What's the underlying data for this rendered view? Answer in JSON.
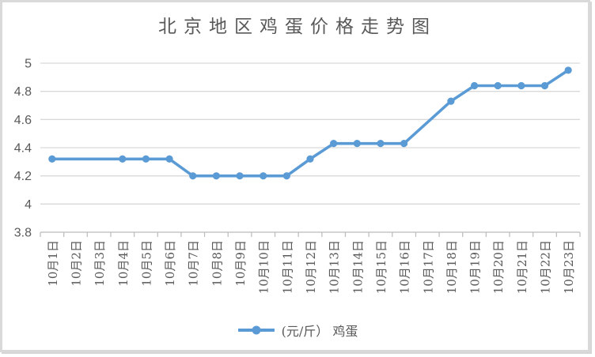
{
  "chart": {
    "colors": {
      "series": "#5B9BD5",
      "grid": "#D9D9D9",
      "axis": "#BFBFBF",
      "text": "#595959",
      "border": "#D9D9D9"
    }
  },
  "chart_data": {
    "type": "line",
    "title": "北京地区鸡蛋价格走势图",
    "categories": [
      "10月1日",
      "10月2日",
      "10月3日",
      "10月4日",
      "10月5日",
      "10月6日",
      "10月7日",
      "10月8日",
      "10月9日",
      "10月10日",
      "10月11日",
      "10月12日",
      "10月13日",
      "10月14日",
      "10月15日",
      "10月16日",
      "10月17日",
      "10月18日",
      "10月19日",
      "10月20日",
      "10月21日",
      "10月22日",
      "10月23日"
    ],
    "series": [
      {
        "name": "(元/斤） 鸡蛋",
        "values": [
          4.32,
          null,
          null,
          4.32,
          4.32,
          4.32,
          4.2,
          4.2,
          4.2,
          4.2,
          4.2,
          4.32,
          4.43,
          4.43,
          4.43,
          4.43,
          null,
          4.73,
          4.84,
          4.84,
          4.84,
          4.84,
          4.95
        ]
      }
    ],
    "ylim": [
      3.8,
      5
    ],
    "yticks": [
      5,
      4.8,
      4.6,
      4.4,
      4.2,
      4,
      3.8
    ],
    "ytick_labels": [
      "5",
      "4.8",
      "4.6",
      "4.4",
      "4.2",
      "4",
      "3.8"
    ],
    "xlabel": "",
    "ylabel": "",
    "grid": "horizontal",
    "legend_position": "bottom",
    "marker": "circle",
    "missing_data_note": "values are null on 10月2日, 10月3日, 10月17日; line connects across gaps"
  }
}
